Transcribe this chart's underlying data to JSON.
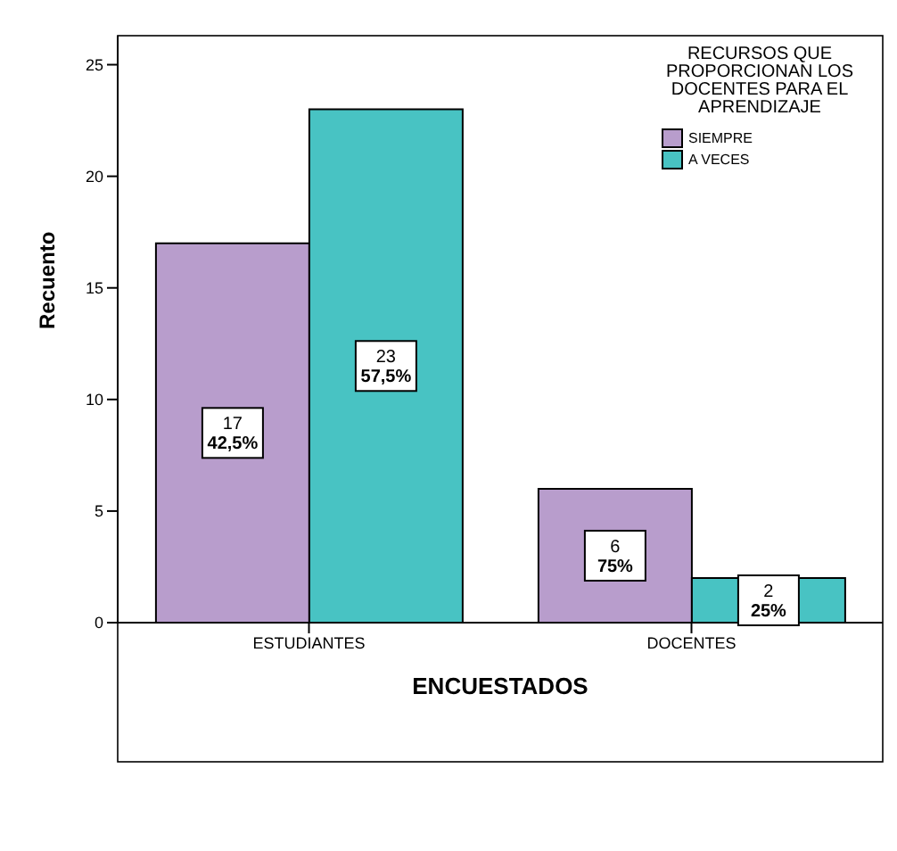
{
  "chart_data": {
    "type": "bar",
    "xlabel": "ENCUESTADOS",
    "ylabel": "Recuento",
    "legend_title": "RECURSOS QUE PROPORCIONAN LOS DOCENTES PARA EL APRENDIZAJE",
    "categories": [
      "ESTUDIANTES",
      "DOCENTES"
    ],
    "series": [
      {
        "name": "SIEMPRE",
        "color": "#b89dcc",
        "values": [
          17,
          6
        ],
        "value_labels": [
          "17\n42,5%",
          "6\n75%"
        ]
      },
      {
        "name": "A VECES",
        "color": "#48c3c3",
        "values": [
          23,
          2
        ],
        "value_labels": [
          "23\n57,5%",
          "2\n25%"
        ]
      }
    ],
    "ylim": [
      0,
      26.3
    ],
    "yticks": [
      0,
      5,
      10,
      15,
      20,
      25
    ],
    "grid": false,
    "legend": "top right"
  }
}
